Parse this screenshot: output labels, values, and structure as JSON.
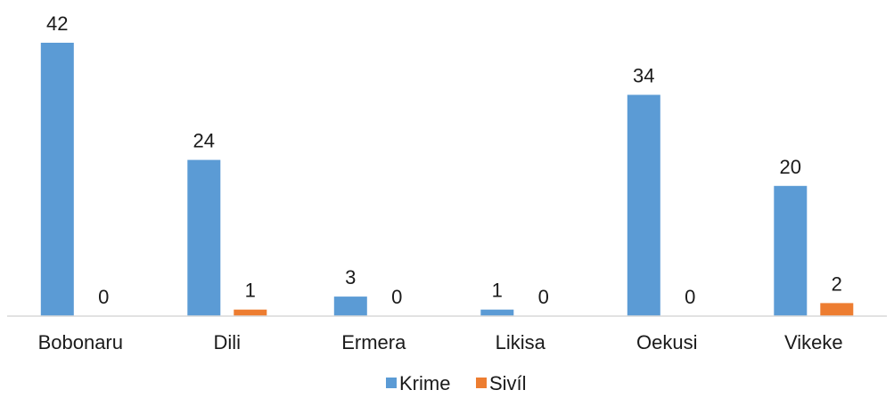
{
  "chart_data": {
    "type": "bar",
    "categories": [
      "Bobonaru",
      "Dili",
      "Ermera",
      "Likisa",
      "Oekusi",
      "Vikeke"
    ],
    "series": [
      {
        "name": "Krime",
        "values": [
          42,
          24,
          3,
          1,
          34,
          20
        ],
        "color": "#5b9bd5"
      },
      {
        "name": "Sivíl",
        "values": [
          0,
          1,
          0,
          0,
          0,
          2
        ],
        "color": "#ed7d31"
      }
    ],
    "ylim": [
      0,
      42
    ],
    "grid": false,
    "data_labels": true,
    "legend": "bottom"
  }
}
